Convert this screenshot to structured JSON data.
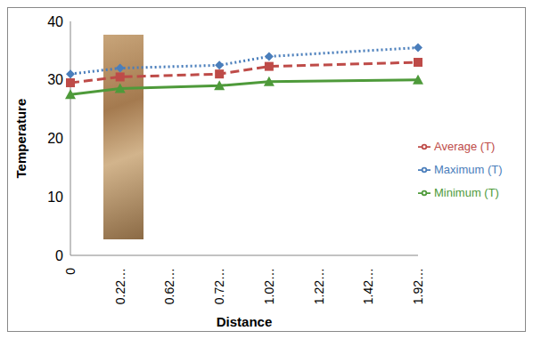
{
  "chart_data": {
    "type": "line",
    "x_label": "Distance",
    "y_label": "Temperature",
    "categories": [
      "0",
      "0.22…",
      "0.62…",
      "0.72…",
      "1.02…",
      "1.22…",
      "1.42…",
      "1.92…"
    ],
    "series": [
      {
        "name": "Maximum (T)",
        "color": "#4a7ebb",
        "marker": "diamond",
        "line_style": "dotted",
        "values": [
          31,
          32,
          null,
          32.5,
          34,
          null,
          null,
          35.5
        ]
      },
      {
        "name": "Average (T)",
        "color": "#be4b48",
        "marker": "square",
        "line_style": "dashed",
        "values": [
          29.5,
          30.5,
          null,
          31,
          32.3,
          null,
          null,
          33
        ]
      },
      {
        "name": "Minimum (T)",
        "color": "#4e9a3a",
        "marker": "triangle",
        "line_style": "solid",
        "values": [
          27.5,
          28.5,
          null,
          29,
          29.7,
          null,
          null,
          30
        ]
      }
    ],
    "ylim": [
      0,
      40
    ],
    "yticks": [
      0,
      10,
      20,
      30,
      40
    ],
    "grid": false,
    "legend": "right"
  }
}
